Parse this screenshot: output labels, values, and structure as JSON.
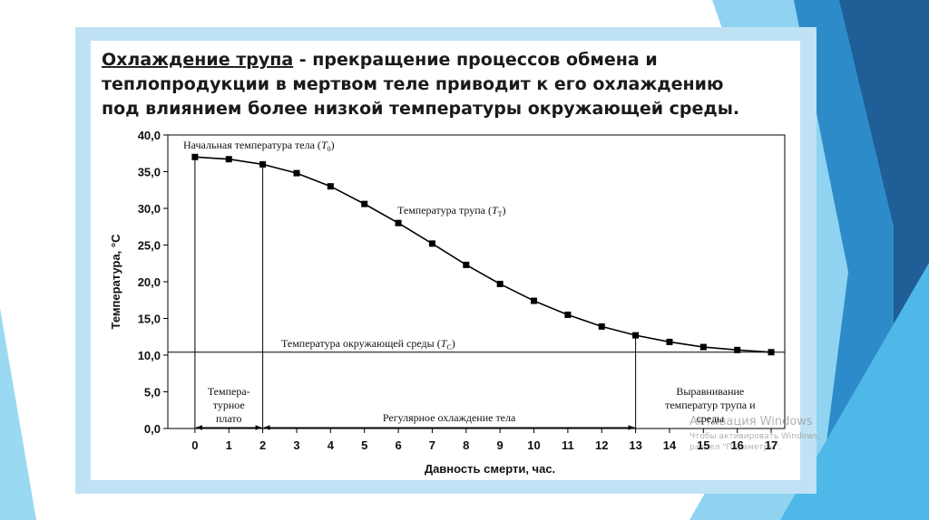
{
  "heading": {
    "term": "Охлаждение трупа",
    "rest": " - прекращение процессов обмена и",
    "lines": [
      "теплопродукции в мертвом теле приводит к его охлаждению",
      "под влиянием более низкой температуры окружающей среды."
    ]
  },
  "chart_data": {
    "type": "line",
    "x": [
      0,
      1,
      2,
      3,
      4,
      5,
      6,
      7,
      8,
      9,
      10,
      11,
      12,
      13,
      14,
      15,
      16,
      17
    ],
    "series": [
      {
        "name": "Температура трупа",
        "color": "#000000",
        "values": [
          37.0,
          36.7,
          36.0,
          34.8,
          33.0,
          30.6,
          28.0,
          25.2,
          22.3,
          19.7,
          17.4,
          15.5,
          13.9,
          12.7,
          11.8,
          11.1,
          10.7,
          10.4
        ]
      }
    ],
    "xlim": [
      -0.8,
      17.4
    ],
    "ylim": [
      0,
      40
    ],
    "xticks": [
      0,
      1,
      2,
      3,
      4,
      5,
      6,
      7,
      8,
      9,
      10,
      11,
      12,
      13,
      14,
      15,
      16,
      17
    ],
    "yticks": [
      {
        "value": 0,
        "label": "0,0"
      },
      {
        "value": 5,
        "label": "5,0"
      },
      {
        "value": 10,
        "label": "10,0"
      },
      {
        "value": 15,
        "label": "15,0"
      },
      {
        "value": 20,
        "label": "20,0"
      },
      {
        "value": 25,
        "label": "25,0"
      },
      {
        "value": 30,
        "label": "30,0"
      },
      {
        "value": 35,
        "label": "35,0"
      },
      {
        "value": 40,
        "label": "40,0"
      }
    ],
    "xlabel": "Давность смерти, час.",
    "ylabel": "Температура, °С",
    "reference_line": {
      "value": 10.4,
      "prefix": "Температура окружающей среды (",
      "symbol": "T",
      "sub": "C",
      "suffix": ")"
    },
    "initial_label": {
      "prefix": "Начальная температура тела (",
      "symbol": "T",
      "sub": "0",
      "suffix": ")"
    },
    "curve_label": {
      "prefix": "Температура трупа (",
      "symbol": "T",
      "sub": "T",
      "suffix": ")"
    },
    "phase_boundaries": [
      0,
      2,
      13
    ],
    "phases": [
      {
        "lines": [
          "Темпера-",
          "турное",
          "плато"
        ]
      },
      {
        "lines": [
          "Регулярное охлаждение тела"
        ]
      },
      {
        "lines": [
          "Выравнивание",
          "температур трупа и",
          "среды"
        ]
      }
    ]
  },
  "watermark": {
    "title": "Активация Windows",
    "lines": [
      "Чтобы активировать Windows, перейдите в",
      "раздел \"Параметры\"."
    ]
  }
}
